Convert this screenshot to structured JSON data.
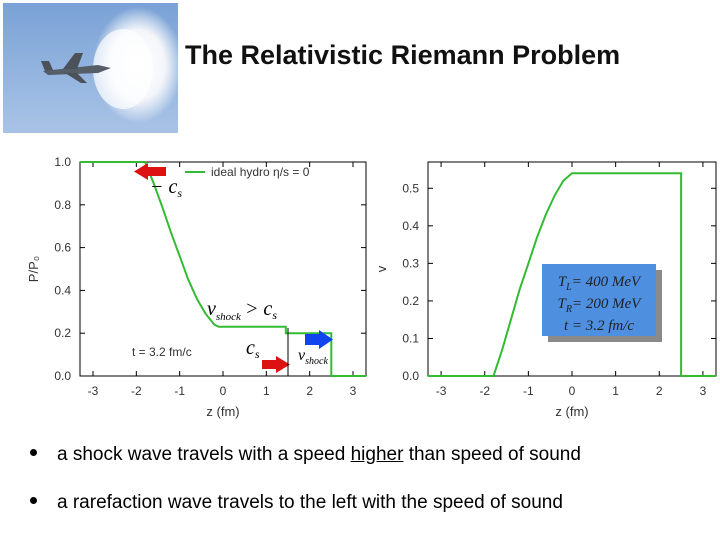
{
  "slide_title": "The Relativistic Riemann Problem",
  "bullets": [
    {
      "pre": "a shock wave travels with a speed ",
      "emph": "higher",
      "post": " than speed of sound"
    },
    {
      "pre": "a rarefaction wave travels to the left with the speed of sound",
      "emph": "",
      "post": ""
    }
  ],
  "photo": {
    "icon": "jet-sonic-boom-photo",
    "colors": {
      "sky": "#8fb2dd",
      "cloud": "#ffffff"
    }
  },
  "colors": {
    "curve": "#33bb33",
    "arrow_red": "#dd1111",
    "arrow_blue": "#1144ee",
    "box_fill": "#4f8fe0",
    "box_shadow": "#8a8a8a"
  },
  "chart_data": [
    {
      "type": "line",
      "ylabel": "P/P₀",
      "xlabel": "z (fm)",
      "xlim": [
        -3.3,
        3.3
      ],
      "ylim": [
        0,
        1.0
      ],
      "xticks": [
        -3,
        -2,
        -1,
        0,
        1,
        2,
        3
      ],
      "yticks": [
        0.0,
        0.2,
        0.4,
        0.6,
        0.8,
        1.0
      ],
      "ytick_labels": [
        "0.0",
        "0.2",
        "0.4",
        "0.6",
        "0.8",
        "1.0"
      ],
      "legend": "ideal hydro η/s = 0",
      "legend_position": "top-right",
      "annotations": {
        "time": "t = 3.2 fm/c",
        "minus_cs": "− c",
        "cs_sub": "s",
        "vshock_gt": "v",
        "vshock_gt_sub": "shock",
        "gt_cs": "> c",
        "gt_cs_sub": "s",
        "cs2": "c",
        "cs2_sub": "s",
        "vshock2": "v",
        "vshock2_sub": "shock"
      },
      "series": [
        {
          "values": [
            [
              -3.3,
              1.0
            ],
            [
              -1.8,
              1.0
            ],
            [
              -1.6,
              0.9
            ],
            [
              -1.4,
              0.79
            ],
            [
              -1.2,
              0.67
            ],
            [
              -1.0,
              0.56
            ],
            [
              -0.8,
              0.45
            ],
            [
              -0.6,
              0.36
            ],
            [
              -0.4,
              0.29
            ],
            [
              -0.2,
              0.24
            ],
            [
              -0.1,
              0.23
            ],
            [
              1.45,
              0.23
            ],
            [
              1.45,
              0.2
            ],
            [
              2.5,
              0.2
            ],
            [
              2.5,
              0.0
            ],
            [
              3.3,
              0.0
            ]
          ]
        }
      ]
    },
    {
      "type": "line",
      "ylabel": "v",
      "xlabel": "z (fm)",
      "xlim": [
        -3.3,
        3.3
      ],
      "ylim": [
        0,
        0.57
      ],
      "xticks": [
        -3,
        -2,
        -1,
        0,
        1,
        2,
        3
      ],
      "yticks": [
        0.0,
        0.1,
        0.2,
        0.3,
        0.4,
        0.5
      ],
      "ytick_labels": [
        "0.0",
        "0.1",
        "0.2",
        "0.3",
        "0.4",
        "0.5"
      ],
      "info_box": {
        "line1": "T",
        "line1_sub": "L",
        "line1_val": "= 400 MeV",
        "line2": "T",
        "line2_sub": "R",
        "line2_val": "= 200 MeV",
        "line3": "t = 3.2 fm/c"
      },
      "series": [
        {
          "values": [
            [
              -3.3,
              0.0
            ],
            [
              -1.8,
              0.0
            ],
            [
              -1.6,
              0.07
            ],
            [
              -1.4,
              0.15
            ],
            [
              -1.2,
              0.23
            ],
            [
              -1.0,
              0.3
            ],
            [
              -0.8,
              0.37
            ],
            [
              -0.6,
              0.43
            ],
            [
              -0.4,
              0.48
            ],
            [
              -0.2,
              0.52
            ],
            [
              0.0,
              0.54
            ],
            [
              2.5,
              0.54
            ],
            [
              2.5,
              0.0
            ],
            [
              3.3,
              0.0
            ]
          ]
        }
      ]
    }
  ]
}
